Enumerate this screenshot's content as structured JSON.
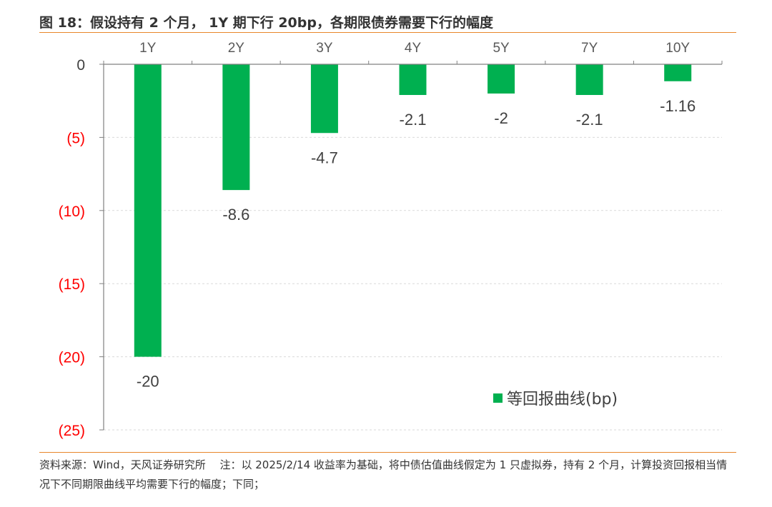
{
  "figure": {
    "title": "图 18：假设持有 2 个月， 1Y 期下行 20bp，各期限债券需要下行的幅度",
    "note": "资料来源：Wind，天风证券研究所　 注：以 2025/2/14 收益率为基础，将中债估值曲线假定为 1 只虚拟券，持有 2 个月，计算投资回报相当情况下不同期限曲线平均需要下行的幅度；下同；"
  },
  "chart_data": {
    "type": "bar",
    "categories": [
      "1Y",
      "2Y",
      "3Y",
      "4Y",
      "5Y",
      "7Y",
      "10Y"
    ],
    "series": [
      {
        "name": "等回报曲线(bp)",
        "values": [
          -20,
          -8.6,
          -4.7,
          -2.1,
          -2,
          -2.1,
          -1.16
        ],
        "color": "#00b050"
      }
    ],
    "data_labels": [
      "-20",
      "-8.6",
      "-4.7",
      "-2.1",
      "-2",
      "-2.1",
      "-1.16"
    ],
    "ylim": [
      -25,
      0
    ],
    "yticks": [
      0,
      -5,
      -10,
      -15,
      -20,
      -25
    ],
    "ytick_labels": [
      "0",
      "(5)",
      "(10)",
      "(15)",
      "(20)",
      "(25)"
    ],
    "ytick_colors": {
      "zero": "#404040",
      "negative": "#ff0000"
    },
    "x_axis_position": "top",
    "grid": true,
    "legend": "bottom-right"
  }
}
